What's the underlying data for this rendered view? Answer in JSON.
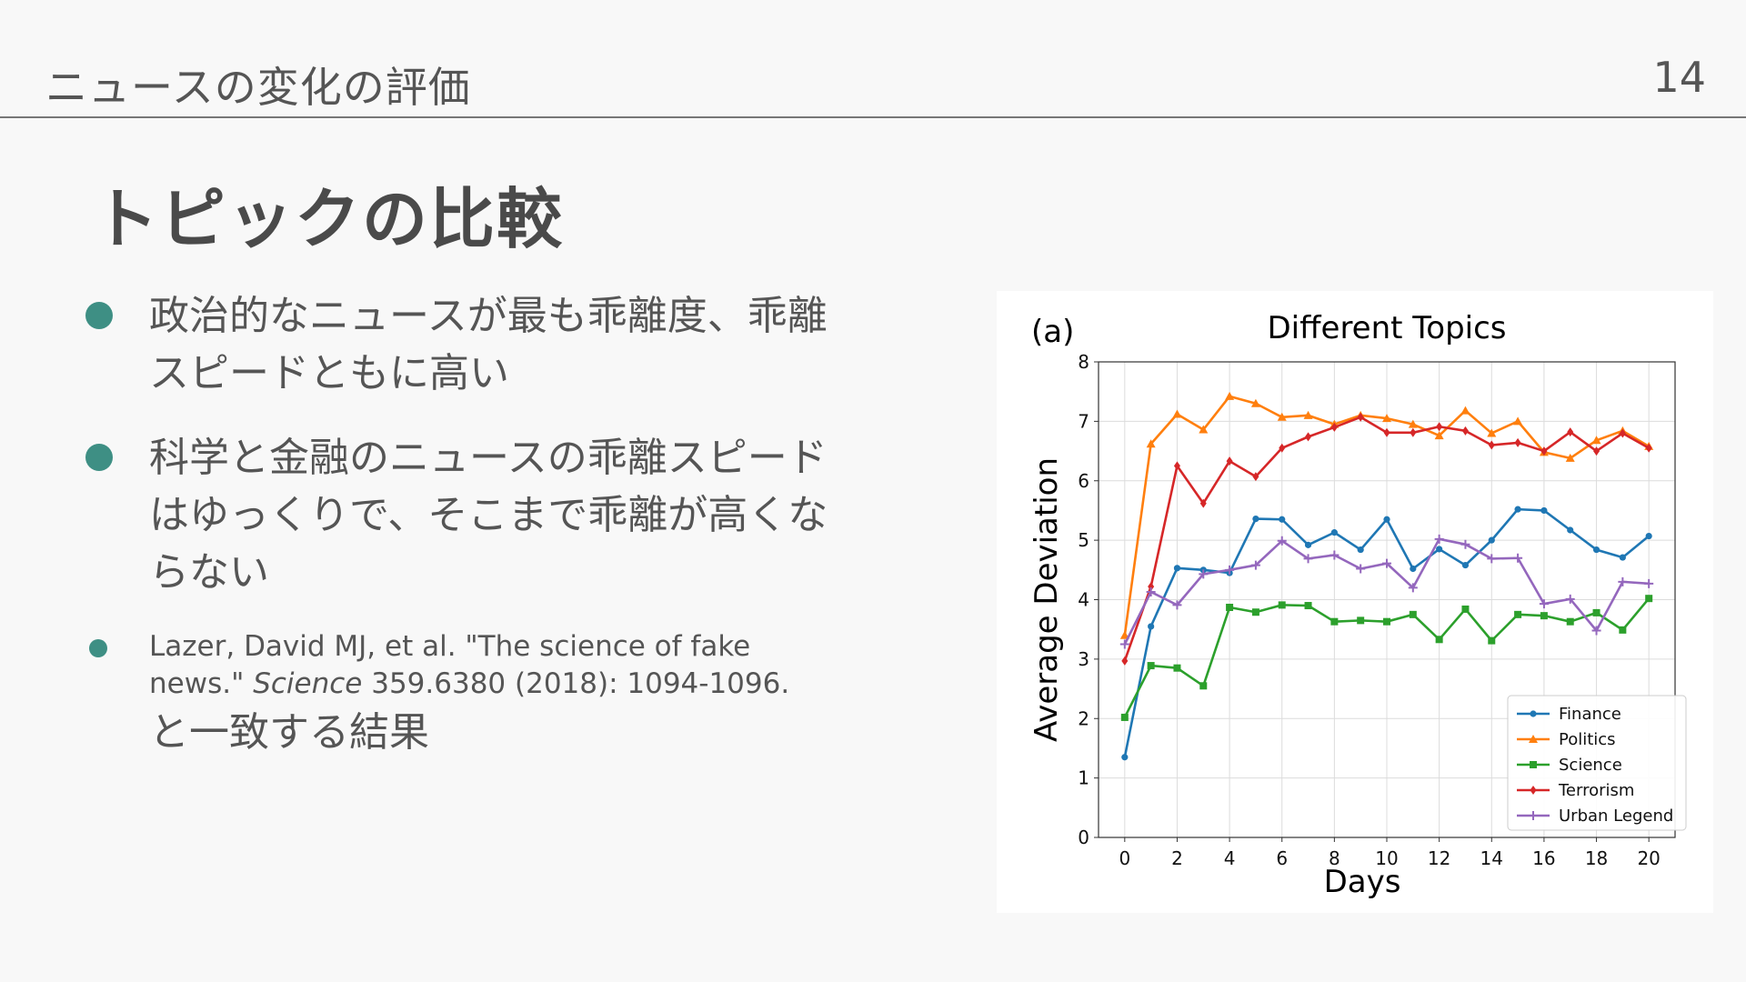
{
  "header": {
    "title": "ニュースの変化の評価",
    "page_number": "14"
  },
  "slide": {
    "title": "トピックの比較"
  },
  "bullets": [
    {
      "lines": [
        "政治的なニュースが最も乖離度、乖離",
        "スピードともに高い"
      ]
    },
    {
      "lines": [
        "科学と金融のニュースの乖離スピード",
        "はゆっくりで、そこまで乖離が高くな",
        "らない"
      ]
    }
  ],
  "citation": {
    "line1": "Lazer, David MJ, et al. \"The science of fake",
    "line2_prefix": "news.\" ",
    "journal": "Science",
    "line2_suffix": " 359.6380 (2018): 1094-1096.",
    "tail": "と一致する結果"
  },
  "chart_data": {
    "type": "line",
    "panel_label": "(a)",
    "title": "Different Topics",
    "xlabel": "Days",
    "ylabel": "Average Deviation",
    "xlim": [
      -1,
      21
    ],
    "ylim": [
      0,
      8
    ],
    "xticks": [
      0,
      2,
      4,
      6,
      8,
      10,
      12,
      14,
      16,
      18,
      20
    ],
    "yticks": [
      0,
      1,
      2,
      3,
      4,
      5,
      6,
      7,
      8
    ],
    "grid": true,
    "legend_position": "lower-right",
    "x": [
      0,
      1,
      2,
      3,
      4,
      5,
      6,
      7,
      8,
      9,
      10,
      11,
      12,
      13,
      14,
      15,
      16,
      17,
      18,
      19,
      20
    ],
    "series": [
      {
        "name": "Finance",
        "color": "#1f77b4",
        "marker": "circle",
        "values": [
          1.35,
          3.55,
          4.53,
          4.5,
          4.45,
          5.36,
          5.35,
          4.92,
          5.13,
          4.84,
          5.35,
          4.52,
          4.85,
          4.58,
          5.0,
          5.52,
          5.5,
          5.17,
          4.84,
          4.71,
          5.07
        ]
      },
      {
        "name": "Politics",
        "color": "#ff7f0e",
        "marker": "triangle",
        "values": [
          3.4,
          6.62,
          7.12,
          6.86,
          7.42,
          7.3,
          7.07,
          7.1,
          6.95,
          7.1,
          7.05,
          6.95,
          6.76,
          7.18,
          6.8,
          7.0,
          6.48,
          6.38,
          6.68,
          6.84,
          6.58
        ]
      },
      {
        "name": "Science",
        "color": "#2ca02c",
        "marker": "square",
        "values": [
          2.02,
          2.89,
          2.85,
          2.55,
          3.87,
          3.79,
          3.91,
          3.9,
          3.63,
          3.65,
          3.63,
          3.75,
          3.33,
          3.84,
          3.31,
          3.75,
          3.73,
          3.63,
          3.78,
          3.49,
          4.02
        ]
      },
      {
        "name": "Terrorism",
        "color": "#d62728",
        "marker": "diamond",
        "values": [
          2.97,
          4.22,
          6.25,
          5.62,
          6.33,
          6.07,
          6.55,
          6.74,
          6.9,
          7.07,
          6.81,
          6.81,
          6.91,
          6.84,
          6.6,
          6.64,
          6.5,
          6.82,
          6.5,
          6.8,
          6.55
        ]
      },
      {
        "name": "Urban Legend",
        "color": "#9467bd",
        "marker": "plus",
        "values": [
          3.25,
          4.13,
          3.91,
          4.43,
          4.5,
          4.58,
          4.99,
          4.69,
          4.75,
          4.52,
          4.61,
          4.2,
          5.02,
          4.93,
          4.69,
          4.7,
          3.93,
          4.01,
          3.48,
          4.3,
          4.27
        ]
      }
    ]
  }
}
